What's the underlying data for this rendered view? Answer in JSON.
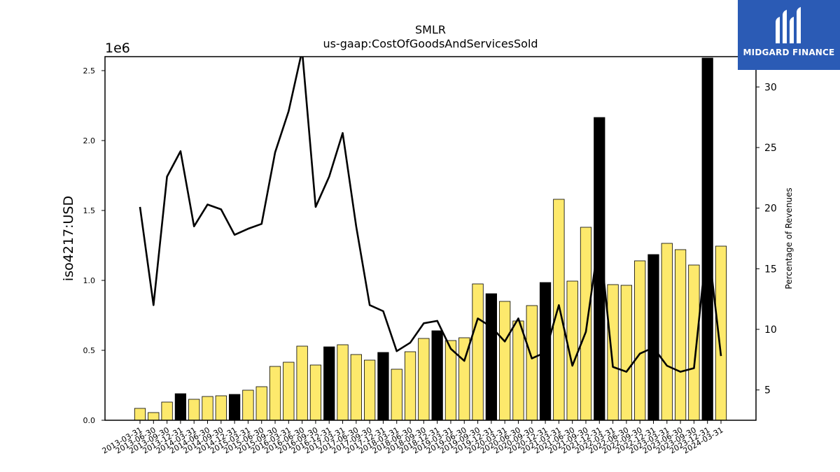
{
  "chart_data": {
    "type": "bar+line",
    "title": "SMLR",
    "subtitle": "us-gaap:CostOfGoodsAndServicesSold",
    "ylabel": "iso4217:USD",
    "y_multiplier": "1e6",
    "y2label": "Percentage of Revenues",
    "ylim": [
      0,
      2600000
    ],
    "y2lim": [
      2.5,
      32.5
    ],
    "yticks": [
      "0.0",
      "0.5",
      "1.0",
      "1.5",
      "2.0",
      "2.5"
    ],
    "y2ticks": [
      "5",
      "10",
      "15",
      "20",
      "25",
      "30"
    ],
    "grid": false,
    "colors": {
      "quarterly": "#fde96c",
      "annual": "#000000",
      "line": "#000000"
    },
    "categories": [
      "2013-03-31",
      "2013-06-30",
      "2013-09-30",
      "2013-12-31",
      "2014-03-31",
      "2014-06-30",
      "2014-09-30",
      "2014-12-31",
      "2015-03-31",
      "2015-06-30",
      "2015-09-30",
      "2016-03-31",
      "2016-06-30",
      "2016-09-30",
      "2016-12-31",
      "2017-03-31",
      "2017-06-30",
      "2017-09-30",
      "2017-12-31",
      "2018-03-31",
      "2018-06-30",
      "2018-09-30",
      "2018-12-31",
      "2019-03-31",
      "2019-06-30",
      "2019-09-30",
      "2019-12-31",
      "2020-03-31",
      "2020-06-30",
      "2020-09-30",
      "2020-12-31",
      "2021-03-31",
      "2021-06-30",
      "2021-09-30",
      "2021-12-31",
      "2022-03-31",
      "2022-06-30",
      "2022-09-30",
      "2022-12-31",
      "2023-03-31",
      "2023-06-30",
      "2023-09-30",
      "2023-12-31",
      "2024-03-31"
    ],
    "series": [
      {
        "kind": "bar",
        "values": [
          85000,
          55000,
          130000,
          190000,
          150000,
          170000,
          175000,
          185000,
          215000,
          240000,
          385000,
          415000,
          530000,
          395000,
          525000,
          540000,
          470000,
          430000,
          485000,
          365000,
          490000,
          585000,
          640000,
          570000,
          590000,
          975000,
          905000,
          850000,
          710000,
          820000,
          985000,
          1580000,
          995000,
          1380000,
          2165000,
          970000,
          965000,
          1140000,
          1185000,
          1265000,
          1220000,
          1110000,
          2590000,
          1245000
        ],
        "annual": [
          false,
          false,
          false,
          true,
          false,
          false,
          false,
          true,
          false,
          false,
          false,
          false,
          false,
          false,
          true,
          false,
          false,
          false,
          true,
          false,
          false,
          false,
          true,
          false,
          false,
          false,
          true,
          false,
          false,
          false,
          true,
          false,
          false,
          false,
          true,
          false,
          false,
          false,
          true,
          false,
          false,
          false,
          true,
          false
        ]
      },
      {
        "kind": "line",
        "axis": "right",
        "values": [
          20.1,
          12.0,
          22.6,
          24.7,
          18.5,
          20.3,
          19.9,
          17.8,
          18.3,
          18.7,
          24.6,
          28.0,
          33.0,
          20.1,
          22.6,
          26.2,
          18.5,
          12.0,
          11.5,
          8.2,
          8.9,
          10.5,
          10.7,
          8.4,
          7.4,
          10.9,
          10.2,
          9.0,
          10.9,
          7.6,
          8.1,
          12.0,
          7.0,
          9.8,
          17.7,
          6.9,
          6.5,
          8.0,
          8.5,
          7.0,
          6.5,
          6.8,
          17.5,
          7.8
        ]
      }
    ]
  },
  "logo": {
    "text": "MIDGARD FINANCE",
    "icon": "midgard-logo-icon"
  }
}
